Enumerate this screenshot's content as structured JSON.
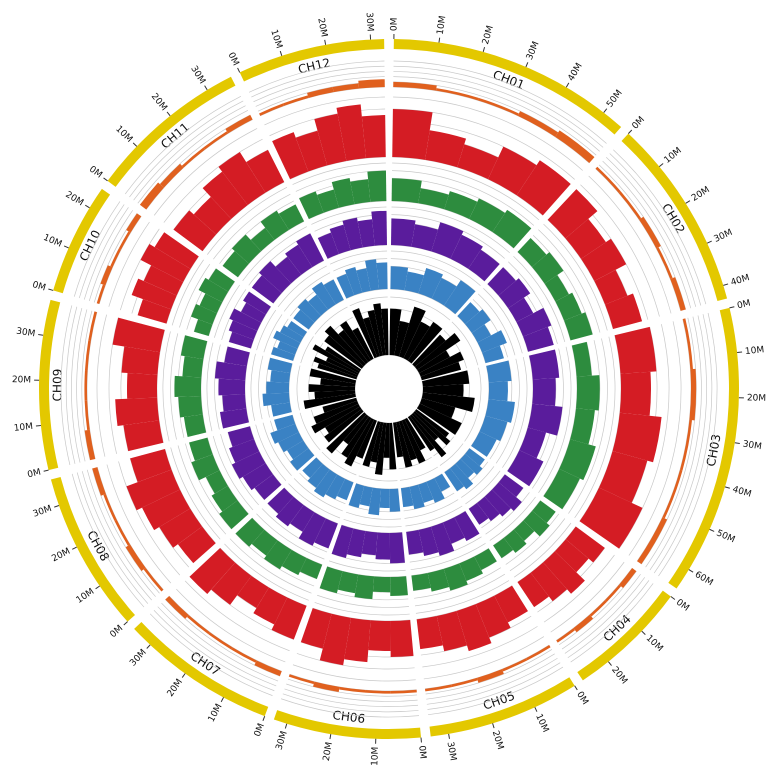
{
  "chart_data": {
    "type": "circos",
    "chromosomes": [
      {
        "name": "CH01",
        "length": 55,
        "ticks": [
          {
            "value": 0,
            "label": "0M"
          },
          {
            "value": 10,
            "label": "10M"
          },
          {
            "value": 20,
            "label": "20M"
          },
          {
            "value": 30,
            "label": "30M"
          },
          {
            "value": 40,
            "label": "40M"
          },
          {
            "value": 50,
            "label": "50M"
          }
        ]
      },
      {
        "name": "CH02",
        "length": 43,
        "ticks": [
          {
            "value": 0,
            "label": "0M"
          },
          {
            "value": 10,
            "label": "10M"
          },
          {
            "value": 20,
            "label": "20M"
          },
          {
            "value": 30,
            "label": "30M"
          },
          {
            "value": 40,
            "label": "40M"
          }
        ]
      },
      {
        "name": "CH03",
        "length": 65,
        "ticks": [
          {
            "value": 0,
            "label": "0M"
          },
          {
            "value": 10,
            "label": "10M"
          },
          {
            "value": 20,
            "label": "20M"
          },
          {
            "value": 30,
            "label": "30M"
          },
          {
            "value": 40,
            "label": "40M"
          },
          {
            "value": 50,
            "label": "50M"
          },
          {
            "value": 60,
            "label": "60M"
          }
        ]
      },
      {
        "name": "CH04",
        "length": 27,
        "ticks": [
          {
            "value": 0,
            "label": "0M"
          },
          {
            "value": 10,
            "label": "10M"
          },
          {
            "value": 20,
            "label": "20M"
          }
        ]
      },
      {
        "name": "CH05",
        "length": 34,
        "ticks": [
          {
            "value": 0,
            "label": "0M"
          },
          {
            "value": 10,
            "label": "10M"
          },
          {
            "value": 20,
            "label": "20M"
          },
          {
            "value": 30,
            "label": "30M"
          }
        ]
      },
      {
        "name": "CH06",
        "length": 33,
        "ticks": [
          {
            "value": 0,
            "label": "0M"
          },
          {
            "value": 10,
            "label": "10M"
          },
          {
            "value": 20,
            "label": "20M"
          },
          {
            "value": 30,
            "label": "30M"
          }
        ]
      },
      {
        "name": "CH07",
        "length": 35,
        "ticks": [
          {
            "value": 0,
            "label": "0M"
          },
          {
            "value": 10,
            "label": "10M"
          },
          {
            "value": 20,
            "label": "20M"
          },
          {
            "value": 30,
            "label": "30M"
          }
        ]
      },
      {
        "name": "CH08",
        "length": 36,
        "ticks": [
          {
            "value": 0,
            "label": "0M"
          },
          {
            "value": 10,
            "label": "10M"
          },
          {
            "value": 20,
            "label": "20M"
          },
          {
            "value": 30,
            "label": "30M"
          }
        ]
      },
      {
        "name": "CH09",
        "length": 38,
        "ticks": [
          {
            "value": 0,
            "label": "0M"
          },
          {
            "value": 10,
            "label": "10M"
          },
          {
            "value": 20,
            "label": "20M"
          },
          {
            "value": 30,
            "label": "30M"
          }
        ]
      },
      {
        "name": "CH10",
        "length": 25,
        "ticks": [
          {
            "value": 0,
            "label": "0M"
          },
          {
            "value": 10,
            "label": "10M"
          },
          {
            "value": 20,
            "label": "20M"
          }
        ]
      },
      {
        "name": "CH11",
        "length": 36,
        "ticks": [
          {
            "value": 0,
            "label": "0M"
          },
          {
            "value": 10,
            "label": "10M"
          },
          {
            "value": 20,
            "label": "20M"
          },
          {
            "value": 30,
            "label": "30M"
          }
        ]
      },
      {
        "name": "CH12",
        "length": 33,
        "ticks": [
          {
            "value": 0,
            "label": "0M"
          },
          {
            "value": 10,
            "label": "10M"
          },
          {
            "value": 20,
            "label": "20M"
          },
          {
            "value": 30,
            "label": "30M"
          }
        ]
      }
    ],
    "chromosome_color": "#e3c800",
    "ylim": [
      0,
      10
    ],
    "yticks": [
      0,
      2,
      4,
      6,
      8,
      10
    ],
    "grid": true,
    "tracks": [
      {
        "color": "#e0601e",
        "values": [
          [
            2,
            1,
            1,
            2,
            3
          ],
          [
            1,
            1,
            2,
            1,
            2
          ],
          [
            1,
            2,
            1,
            1,
            2
          ],
          [
            2,
            1,
            1,
            2,
            1
          ],
          [
            1,
            1,
            2,
            1,
            1
          ],
          [
            1,
            1,
            1,
            2,
            1
          ],
          [
            2,
            1,
            1,
            1,
            2
          ],
          [
            1,
            2,
            1,
            1,
            2
          ],
          [
            2,
            1,
            1,
            1,
            1
          ],
          [
            1,
            2,
            1,
            1,
            2
          ],
          [
            3,
            2,
            1,
            1,
            2
          ],
          [
            1,
            1,
            2,
            2,
            3
          ]
        ]
      },
      {
        "color": "#d41c24",
        "values": [
          [
            8,
            5,
            4,
            6,
            7
          ],
          [
            7,
            5,
            6,
            4,
            5
          ],
          [
            6,
            5,
            7,
            6,
            8
          ],
          [
            6,
            5,
            7,
            6,
            5
          ],
          [
            5,
            6,
            7,
            6,
            5
          ],
          [
            6,
            5,
            7,
            8,
            6
          ],
          [
            6,
            5,
            4,
            6,
            7
          ],
          [
            5,
            6,
            7,
            8,
            6
          ],
          [
            6,
            7,
            5,
            6,
            8
          ],
          [
            5,
            7,
            6,
            8,
            7
          ],
          [
            6,
            5,
            7,
            8,
            6
          ],
          [
            7,
            6,
            8,
            9,
            7
          ]
        ]
      },
      {
        "color": "#2d8c3e",
        "values": [
          [
            6,
            4,
            5,
            6,
            7
          ],
          [
            5,
            6,
            4,
            5,
            6
          ],
          [
            4,
            6,
            5,
            7,
            6
          ],
          [
            5,
            6,
            4,
            5,
            4
          ],
          [
            4,
            5,
            6,
            5,
            4
          ],
          [
            5,
            4,
            6,
            5,
            6
          ],
          [
            4,
            5,
            6,
            5,
            6
          ],
          [
            6,
            5,
            4,
            6,
            5
          ],
          [
            5,
            6,
            7,
            5,
            6
          ],
          [
            4,
            6,
            5,
            7,
            6
          ],
          [
            5,
            6,
            4,
            6,
            5
          ],
          [
            6,
            5,
            7,
            6,
            8
          ]
        ]
      },
      {
        "color": "#5a1c9c",
        "values": [
          [
            7,
            6,
            8,
            7,
            6
          ],
          [
            6,
            7,
            5,
            8,
            7
          ],
          [
            7,
            6,
            8,
            5,
            7
          ],
          [
            6,
            8,
            7,
            6,
            5
          ],
          [
            7,
            6,
            8,
            7,
            6
          ],
          [
            8,
            7,
            6,
            7,
            8
          ],
          [
            7,
            8,
            6,
            7,
            6
          ],
          [
            6,
            7,
            8,
            7,
            6
          ],
          [
            7,
            6,
            7,
            8,
            6
          ],
          [
            6,
            7,
            8,
            6,
            7
          ],
          [
            7,
            8,
            6,
            7,
            8
          ],
          [
            6,
            7,
            8,
            7,
            9
          ]
        ]
      },
      {
        "color": "#3a82c4",
        "values": [
          [
            6,
            5,
            7,
            6,
            8
          ],
          [
            5,
            6,
            4,
            7,
            5
          ],
          [
            6,
            5,
            7,
            6,
            5
          ],
          [
            5,
            6,
            5,
            7,
            6
          ],
          [
            4,
            6,
            5,
            6,
            5
          ],
          [
            6,
            5,
            7,
            5,
            6
          ],
          [
            5,
            6,
            7,
            6,
            5
          ],
          [
            6,
            5,
            6,
            7,
            5
          ],
          [
            5,
            7,
            6,
            5,
            6
          ],
          [
            6,
            5,
            7,
            6,
            5
          ],
          [
            5,
            6,
            5,
            7,
            6
          ],
          [
            6,
            7,
            6,
            8,
            7
          ]
        ]
      },
      {
        "color": "#000000",
        "values": [
          [
            8,
            6,
            9,
            7,
            8
          ],
          [
            7,
            9,
            6,
            8,
            7
          ],
          [
            8,
            7,
            9,
            6,
            8
          ],
          [
            7,
            8,
            6,
            9,
            7
          ],
          [
            6,
            8,
            7,
            8,
            6
          ],
          [
            8,
            6,
            9,
            7,
            8
          ],
          [
            7,
            9,
            8,
            6,
            9
          ],
          [
            8,
            7,
            9,
            8,
            6
          ],
          [
            9,
            7,
            8,
            6,
            8
          ],
          [
            7,
            8,
            6,
            9,
            7
          ],
          [
            8,
            9,
            7,
            8,
            6
          ],
          [
            9,
            7,
            8,
            9,
            8
          ]
        ]
      }
    ]
  }
}
